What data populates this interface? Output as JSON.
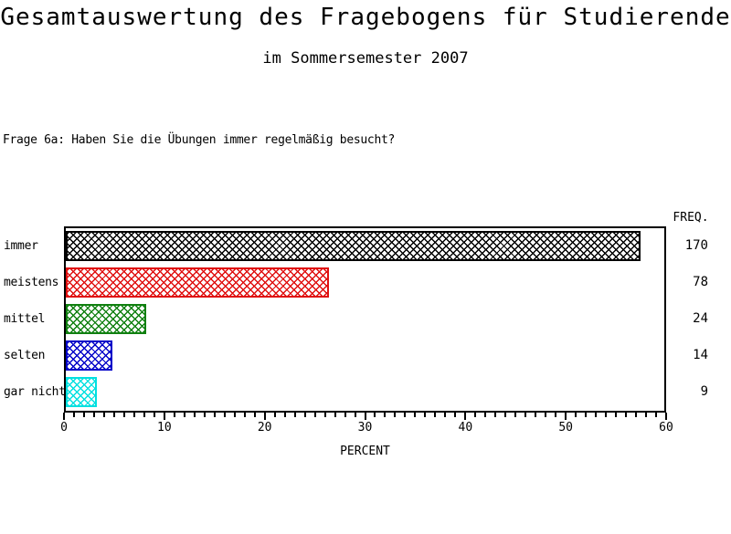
{
  "header": {
    "title": "Gesamtauswertung des Fragebogens für Studierende",
    "subtitle": "im Sommersemester 2007"
  },
  "question": "Frage 6a: Haben Sie die Übungen immer regelmäßig besucht?",
  "chart_data": {
    "type": "bar",
    "orientation": "horizontal",
    "title": "",
    "xlabel": "PERCENT",
    "freq_header": "FREQ.",
    "categories": [
      "immer",
      "meistens",
      "mittel",
      "selten",
      "gar nicht"
    ],
    "series": [
      {
        "name": "PERCENT",
        "values": [
          57.6,
          26.4,
          8.1,
          4.7,
          3.1
        ]
      },
      {
        "name": "FREQ.",
        "values": [
          170,
          78,
          24,
          14,
          9
        ]
      }
    ],
    "bar_colors": [
      "#000000",
      "#e01010",
      "#108010",
      "#0000c8",
      "#00e0e0"
    ],
    "hatch": "crosshatch",
    "xlim": [
      0,
      60
    ],
    "x_major_ticks": [
      0,
      10,
      20,
      30,
      40,
      50,
      60
    ],
    "x_minor_tick_step": 1,
    "grid": false,
    "legend": "none"
  }
}
